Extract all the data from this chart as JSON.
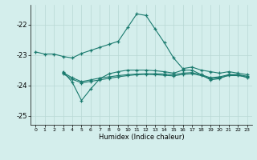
{
  "xlabel": "Humidex (Indice chaleur)",
  "background_color": "#d4eeec",
  "line_color": "#1a7a6e",
  "grid_color": "#b8d8d4",
  "x_values": [
    0,
    1,
    2,
    3,
    4,
    5,
    6,
    7,
    8,
    9,
    10,
    11,
    12,
    13,
    14,
    15,
    16,
    17,
    18,
    19,
    20,
    21,
    22,
    23
  ],
  "curve_main": [
    -22.9,
    -22.97,
    -22.97,
    -23.05,
    -23.1,
    -22.95,
    -22.85,
    -22.75,
    -22.65,
    -22.55,
    -22.1,
    -21.65,
    -21.7,
    -22.15,
    -22.6,
    -23.1,
    -23.45,
    -23.4,
    -23.5,
    -23.55,
    -23.6,
    -23.55,
    -23.6,
    -23.65
  ],
  "curve_lower": [
    null,
    null,
    null,
    -23.55,
    -23.9,
    -24.5,
    -24.12,
    -23.78,
    -23.62,
    -23.55,
    -23.5,
    -23.5,
    -23.5,
    -23.52,
    -23.55,
    -23.6,
    -23.5,
    -23.5,
    -23.65,
    -23.82,
    -23.78,
    -23.65,
    -23.65,
    -23.75
  ],
  "curve_trend1": [
    null,
    null,
    null,
    -23.58,
    -23.75,
    -23.88,
    -23.82,
    -23.76,
    -23.72,
    -23.68,
    -23.65,
    -23.63,
    -23.62,
    -23.62,
    -23.63,
    -23.65,
    -23.6,
    -23.58,
    -23.65,
    -23.75,
    -23.72,
    -23.65,
    -23.65,
    -23.7
  ],
  "curve_trend2": [
    null,
    null,
    null,
    -23.62,
    -23.8,
    -23.92,
    -23.87,
    -23.82,
    -23.77,
    -23.72,
    -23.68,
    -23.65,
    -23.64,
    -23.65,
    -23.67,
    -23.69,
    -23.64,
    -23.62,
    -23.68,
    -23.78,
    -23.75,
    -23.68,
    -23.68,
    -23.73
  ],
  "ylim": [
    -25.3,
    -21.35
  ],
  "xlim": [
    -0.5,
    23.5
  ],
  "yticks": [
    -25,
    -24,
    -23,
    -22
  ],
  "xticks": [
    0,
    1,
    2,
    3,
    4,
    5,
    6,
    7,
    8,
    9,
    10,
    11,
    12,
    13,
    14,
    15,
    16,
    17,
    18,
    19,
    20,
    21,
    22,
    23
  ]
}
